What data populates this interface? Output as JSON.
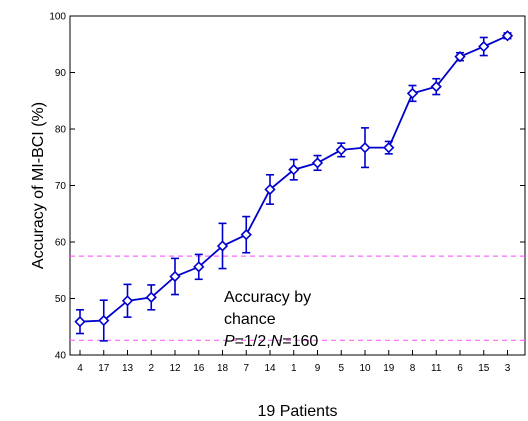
{
  "chart_data": {
    "type": "line",
    "xlabel": "19 Patients",
    "ylabel": "Accuracy of MI-BCI (%)",
    "ylim": [
      40,
      100
    ],
    "yticks": [
      40,
      50,
      60,
      70,
      80,
      90,
      100
    ],
    "categories": [
      "4",
      "17",
      "13",
      "2",
      "12",
      "16",
      "18",
      "7",
      "14",
      "1",
      "9",
      "5",
      "10",
      "19",
      "8",
      "11",
      "6",
      "15",
      "3"
    ],
    "series": [
      {
        "values": [
          45.9,
          46.1,
          49.6,
          50.2,
          53.9,
          55.6,
          59.3,
          61.3,
          69.3,
          72.8,
          74.0,
          76.3,
          76.7,
          76.7,
          86.3,
          87.5,
          92.8,
          94.6,
          96.5
        ],
        "error": [
          2.1,
          3.6,
          2.9,
          2.2,
          3.2,
          2.2,
          4.0,
          3.2,
          2.6,
          1.8,
          1.3,
          1.2,
          3.5,
          1.1,
          1.4,
          1.4,
          0.7,
          1.6,
          0.5
        ],
        "color": "#0000cc",
        "marker": "diamond"
      }
    ],
    "chance_bounds": [
      42.6,
      57.5
    ],
    "chance_line_color": "#ff66ff",
    "annotation": {
      "line1": "Accuracy by",
      "line2": "chance",
      "line3_p_label": "P",
      "line3_p_value": "=1/2,",
      "line3_n_label": "N",
      "line3_n_value": "=160"
    },
    "grid": false
  }
}
